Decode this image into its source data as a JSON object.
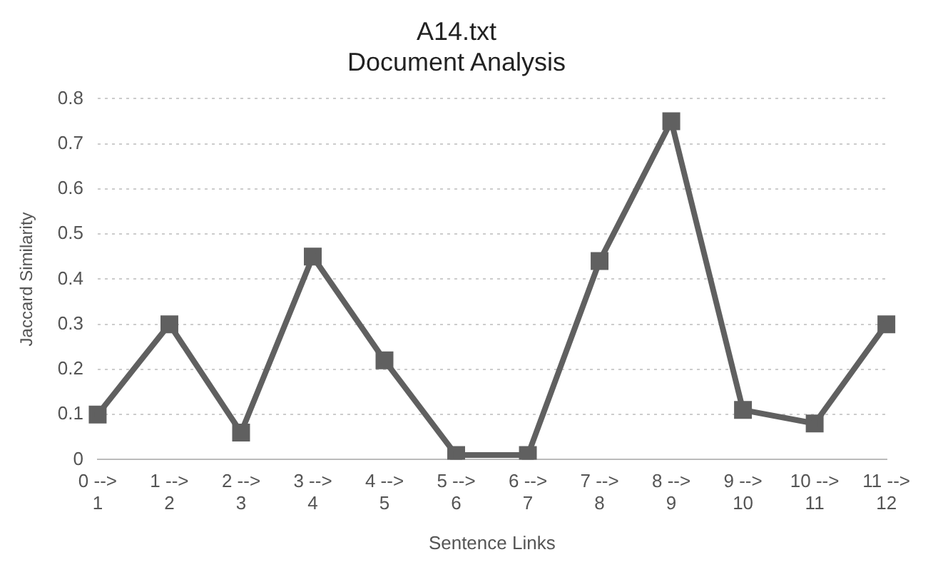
{
  "chart_data": {
    "type": "line",
    "title": "A14.txt\nDocument Analysis",
    "xlabel": "Sentence Links",
    "ylabel": "Jaccard Similarity",
    "categories": [
      "0 -->\n1",
      "1 -->\n2",
      "2 -->\n3",
      "3 -->\n4",
      "4 -->\n5",
      "5 -->\n6",
      "6 -->\n7",
      "7 -->\n8",
      "8 -->\n9",
      "9 -->\n10",
      "10 -->\n11",
      "11 -->\n12"
    ],
    "series": [
      {
        "color": "#606060",
        "values": [
          0.1,
          0.3,
          0.06,
          0.45,
          0.22,
          0.01,
          0.01,
          0.44,
          0.75,
          0.11,
          0.08,
          0.3
        ]
      }
    ],
    "ylim": [
      0,
      0.8
    ],
    "yticks": [
      0,
      0.1,
      0.2,
      0.3,
      0.4,
      0.5,
      0.6,
      0.7,
      0.8
    ],
    "grid": "y",
    "marker": "square",
    "line_style": "solid",
    "legend": false
  }
}
